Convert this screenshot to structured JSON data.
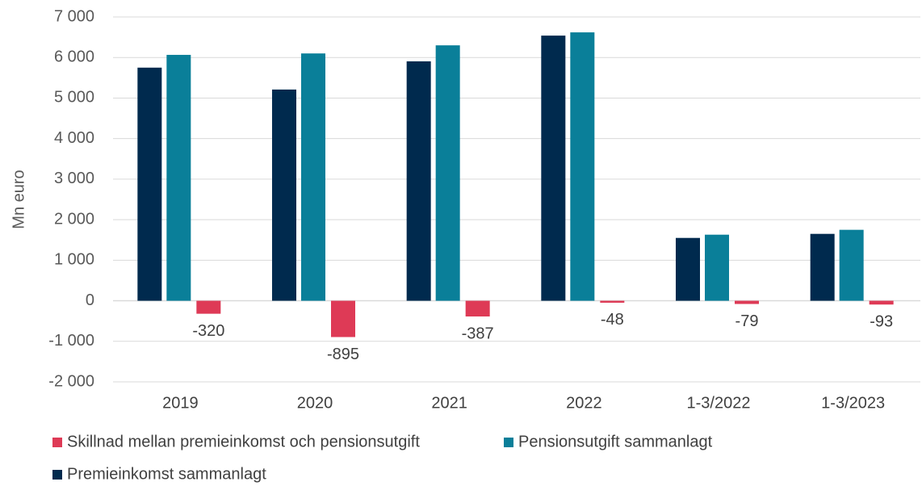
{
  "chart_data": {
    "type": "bar",
    "y_axis_label": "Mn euro",
    "categories": [
      "2019",
      "2020",
      "2021",
      "2022",
      "1-3/2022",
      "1-3/2023"
    ],
    "series": [
      {
        "name": "Premieinkomst sammanlagt",
        "color": "#002a4e",
        "values": [
          5750,
          5210,
          5905,
          6540,
          1550,
          1650
        ]
      },
      {
        "name": "Pensionsutgift sammanlagt",
        "color": "#0a7f99",
        "values": [
          6065,
          6100,
          6300,
          6620,
          1630,
          1750
        ]
      },
      {
        "name": "Skillnad mellan premieinkomst och pensionsutgift",
        "color": "#de3a56",
        "values": [
          -320,
          -895,
          -387,
          -48,
          -79,
          -93
        ]
      }
    ],
    "ylim": [
      -2000,
      7000
    ],
    "yticks": [
      {
        "value": -2000,
        "label": "-2 000"
      },
      {
        "value": -1000,
        "label": "-1 000"
      },
      0,
      {
        "value": 1000,
        "label": "1 000"
      },
      {
        "value": 2000,
        "label": "2 000"
      },
      {
        "value": 3000,
        "label": "3 000"
      },
      {
        "value": 4000,
        "label": "4 000"
      },
      {
        "value": 5000,
        "label": "5 000"
      },
      {
        "value": 6000,
        "label": "6 000"
      },
      {
        "value": 7000,
        "label": "7 000"
      }
    ],
    "grid": true
  }
}
